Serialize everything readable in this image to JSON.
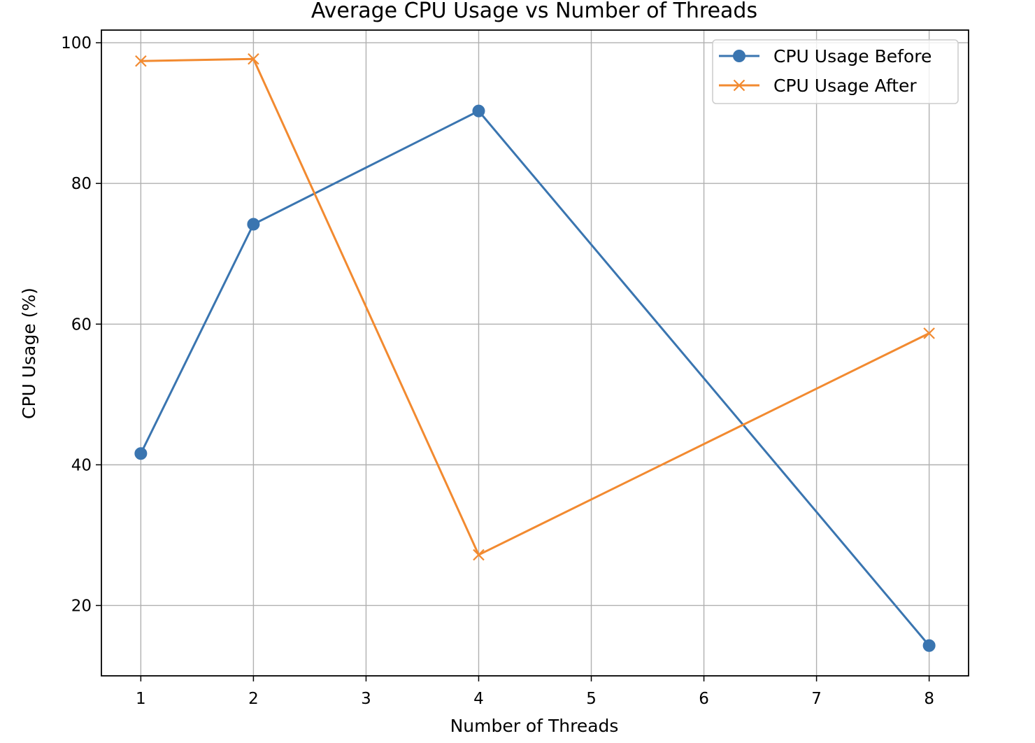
{
  "chart_data": {
    "type": "line",
    "title": "Average CPU Usage vs Number of Threads",
    "xlabel": "Number of Threads",
    "ylabel": "CPU Usage (%)",
    "x": [
      1,
      2,
      4,
      8
    ],
    "xlim": [
      0.65,
      8.35
    ],
    "ylim": [
      10,
      101.8
    ],
    "xticks": [
      1,
      2,
      3,
      4,
      5,
      6,
      7,
      8
    ],
    "yticks": [
      20,
      40,
      60,
      80,
      100
    ],
    "grid": true,
    "legend_position": "top-right",
    "series": [
      {
        "name": "CPU Usage Before",
        "values": [
          41.6,
          74.2,
          90.3,
          14.3
        ],
        "color": "#3a75b0",
        "marker": "circle"
      },
      {
        "name": "CPU Usage After",
        "values": [
          97.4,
          97.7,
          27.2,
          58.7
        ],
        "color": "#f28a30",
        "marker": "x"
      }
    ]
  }
}
